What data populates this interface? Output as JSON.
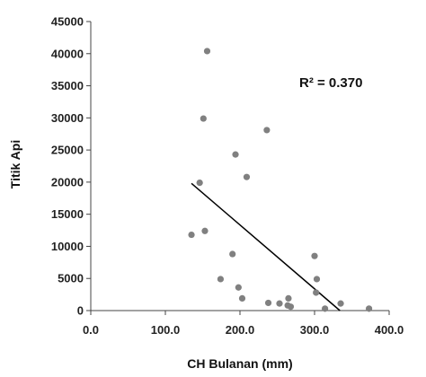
{
  "chart_data": {
    "type": "scatter",
    "xlabel": "CH Bulanan (mm)",
    "ylabel": "Titik Api",
    "xlim": [
      0,
      400
    ],
    "ylim": [
      0,
      45000
    ],
    "x_ticks": [
      "0.0",
      "100.0",
      "200.0",
      "300.0",
      "400.0"
    ],
    "y_ticks": [
      "0",
      "5000",
      "10000",
      "15000",
      "20000",
      "25000",
      "30000",
      "35000",
      "40000",
      "45000"
    ],
    "annotation": "R² = 0.370",
    "grid": false,
    "marker_color": "#808080",
    "trendline_color": "#000000",
    "points": [
      {
        "x": 156,
        "y": 40400
      },
      {
        "x": 151,
        "y": 29900
      },
      {
        "x": 236,
        "y": 28100
      },
      {
        "x": 194,
        "y": 24300
      },
      {
        "x": 209,
        "y": 20800
      },
      {
        "x": 146,
        "y": 19900
      },
      {
        "x": 153,
        "y": 12400
      },
      {
        "x": 135,
        "y": 11800
      },
      {
        "x": 190,
        "y": 8800
      },
      {
        "x": 300,
        "y": 8500
      },
      {
        "x": 174,
        "y": 4900
      },
      {
        "x": 303,
        "y": 4900
      },
      {
        "x": 198,
        "y": 3600
      },
      {
        "x": 302,
        "y": 2800
      },
      {
        "x": 203,
        "y": 1900
      },
      {
        "x": 265,
        "y": 1900
      },
      {
        "x": 238,
        "y": 1200
      },
      {
        "x": 253,
        "y": 1100
      },
      {
        "x": 335,
        "y": 1100
      },
      {
        "x": 264,
        "y": 800
      },
      {
        "x": 268,
        "y": 600
      },
      {
        "x": 314,
        "y": 300
      },
      {
        "x": 373,
        "y": 300
      }
    ],
    "trendline": {
      "x": [
        135,
        334
      ],
      "y": [
        19800,
        0
      ]
    }
  }
}
